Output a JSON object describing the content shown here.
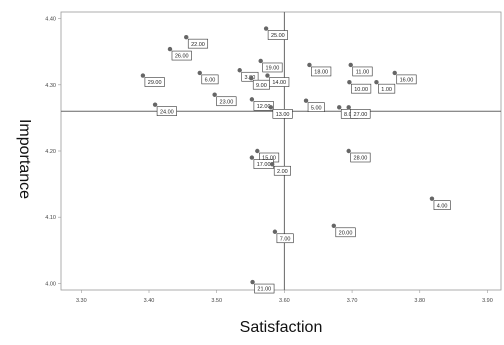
{
  "chart_data": {
    "type": "scatter",
    "xlabel": "Satisfaction",
    "ylabel": "Importance",
    "xlim": [
      3.27,
      3.92
    ],
    "ylim": [
      3.99,
      4.41
    ],
    "xticks": [
      "3.30",
      "3.40",
      "3.50",
      "3.60",
      "3.70",
      "3.80",
      "3.90"
    ],
    "yticks": [
      "4.00",
      "4.10",
      "4.20",
      "4.30",
      "4.40"
    ],
    "reference_lines": {
      "x": 3.6,
      "y": 4.26
    },
    "grid": false,
    "marker_color": "#666666",
    "points": [
      {
        "label": "25.00",
        "x": 3.573,
        "y": 4.385
      },
      {
        "label": "26.00",
        "x": 3.431,
        "y": 4.354
      },
      {
        "label": "22.00",
        "x": 3.455,
        "y": 4.372
      },
      {
        "label": "19.00",
        "x": 3.565,
        "y": 4.336
      },
      {
        "label": "3.00",
        "x": 3.534,
        "y": 4.322
      },
      {
        "label": "6.00",
        "x": 3.475,
        "y": 4.318
      },
      {
        "label": "11.00",
        "x": 3.698,
        "y": 4.33
      },
      {
        "label": "18.00",
        "x": 3.637,
        "y": 4.33
      },
      {
        "label": "29.00",
        "x": 3.391,
        "y": 4.314
      },
      {
        "label": "9.00",
        "x": 3.551,
        "y": 4.31
      },
      {
        "label": "14.00",
        "x": 3.575,
        "y": 4.314
      },
      {
        "label": "10.00",
        "x": 3.696,
        "y": 4.304
      },
      {
        "label": "1.00",
        "x": 3.736,
        "y": 4.304
      },
      {
        "label": "16.00",
        "x": 3.763,
        "y": 4.318
      },
      {
        "label": "5.00",
        "x": 3.632,
        "y": 4.276
      },
      {
        "label": "23.00",
        "x": 3.497,
        "y": 4.285
      },
      {
        "label": "12.00",
        "x": 3.552,
        "y": 4.278
      },
      {
        "label": "24.00",
        "x": 3.409,
        "y": 4.27
      },
      {
        "label": "8.00",
        "x": 3.681,
        "y": 4.266
      },
      {
        "label": "27.00",
        "x": 3.695,
        "y": 4.266
      },
      {
        "label": "13.00",
        "x": 3.58,
        "y": 4.266
      },
      {
        "label": "15.00",
        "x": 3.56,
        "y": 4.2
      },
      {
        "label": "28.00",
        "x": 3.695,
        "y": 4.2
      },
      {
        "label": "17.00",
        "x": 3.552,
        "y": 4.19
      },
      {
        "label": "2.00",
        "x": 3.582,
        "y": 4.18
      },
      {
        "label": "4.00",
        "x": 3.818,
        "y": 4.128
      },
      {
        "label": "20.00",
        "x": 3.673,
        "y": 4.087
      },
      {
        "label": "7.00",
        "x": 3.586,
        "y": 4.078
      },
      {
        "label": "21.00",
        "x": 3.553,
        "y": 4.002
      }
    ]
  }
}
